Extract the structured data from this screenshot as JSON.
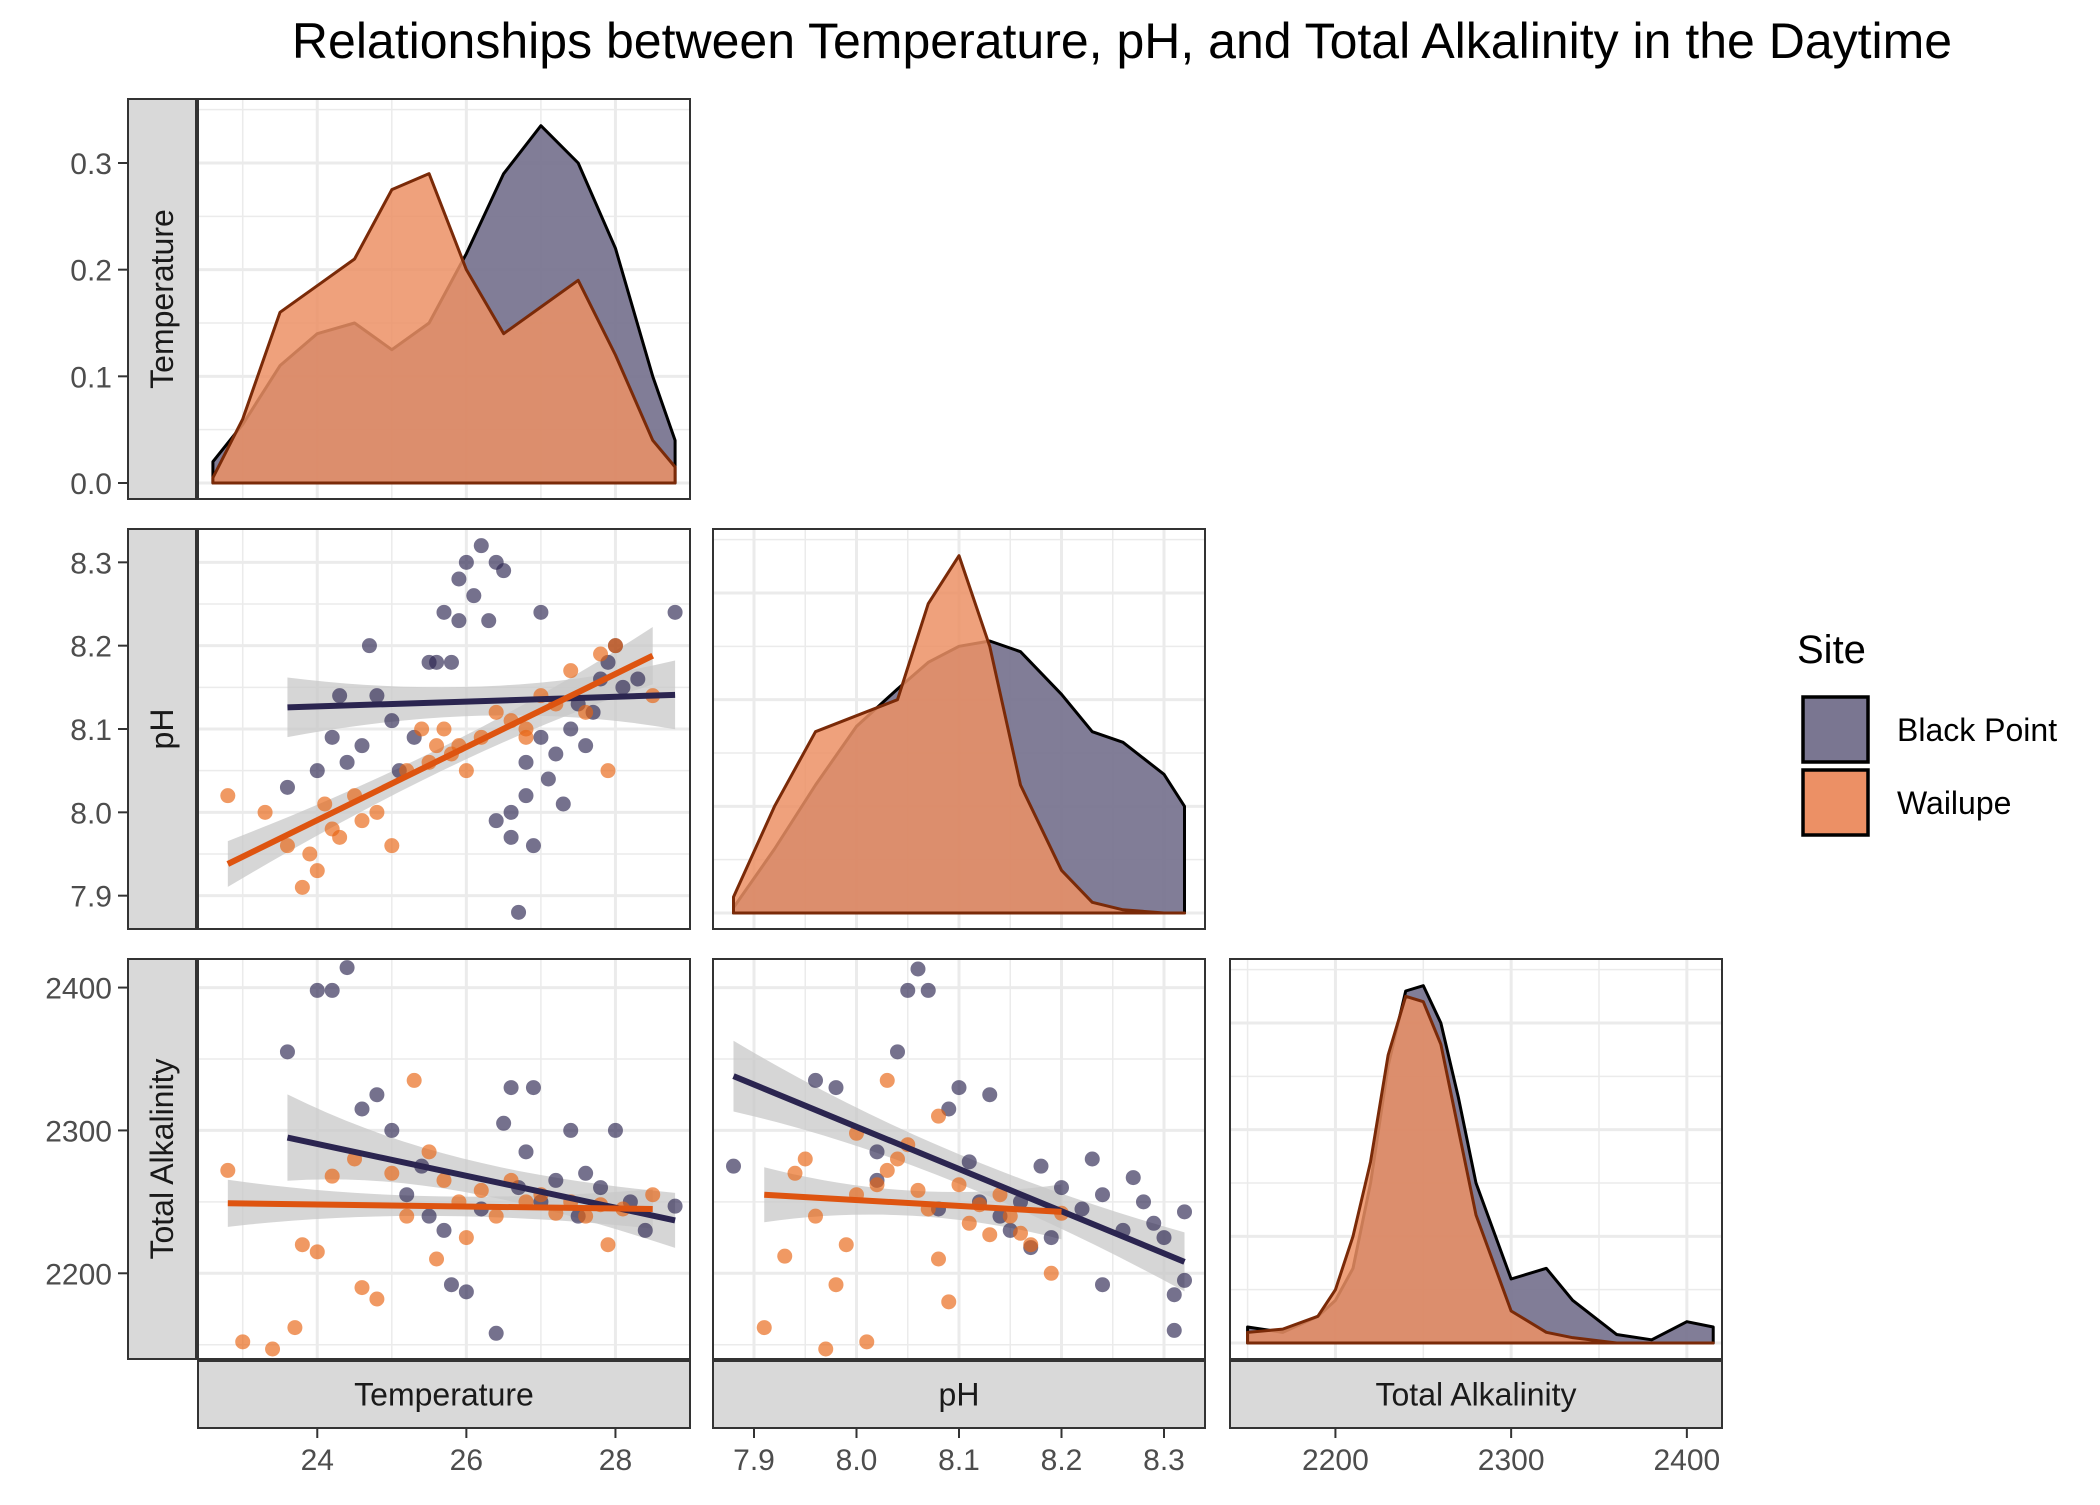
{
  "title": "Relationships between Temperature, pH, and Total Alkalinity in the Daytime",
  "legend": {
    "title": "Site",
    "position": "right",
    "items": [
      {
        "name": "Black Point",
        "color": "#7a7691"
      },
      {
        "name": "Wailupe",
        "color": "#ec9065"
      }
    ]
  },
  "colors": {
    "black_point_fill": "#7a7691",
    "wailupe_fill": "#ec9065",
    "black_point_line": "#2b2550",
    "wailupe_line": "#de5410",
    "ribbon": "#c8c8c8",
    "strip_bg": "#d9d9d9",
    "grid": "#ebebeb"
  },
  "variables": [
    "Temperature",
    "pH",
    "Total Alkalinity"
  ],
  "chart_data": {
    "type": "scatter",
    "layout": "pairs-matrix-lower-triangle",
    "grid": true,
    "variables": [
      {
        "name": "Temperature",
        "ticks": [
          24,
          26,
          28
        ],
        "range": [
          22.4,
          29.0
        ]
      },
      {
        "name": "pH",
        "ticks": [
          7.9,
          8.0,
          8.1,
          8.2,
          8.3
        ],
        "range": [
          7.86,
          8.34
        ]
      },
      {
        "name": "Total Alkalinity",
        "ticks": [
          2200,
          2300,
          2400
        ],
        "range": [
          2140,
          2420
        ]
      }
    ],
    "density_yaxis": {
      "ticks": [
        0.0,
        0.1,
        0.2,
        0.3
      ],
      "ylim": [
        -0.015,
        0.36
      ]
    },
    "density": {
      "Temperature": {
        "x": [
          22.6,
          23.0,
          23.5,
          24.0,
          24.5,
          25.0,
          25.5,
          26.0,
          26.5,
          27.0,
          27.5,
          28.0,
          28.5,
          28.8
        ],
        "Black Point": [
          0.02,
          0.055,
          0.11,
          0.14,
          0.15,
          0.125,
          0.15,
          0.215,
          0.29,
          0.335,
          0.3,
          0.22,
          0.1,
          0.04
        ],
        "Wailupe": [
          0.005,
          0.06,
          0.16,
          0.185,
          0.21,
          0.275,
          0.29,
          0.2,
          0.14,
          0.165,
          0.19,
          0.12,
          0.04,
          0.015
        ]
      },
      "pH": {
        "x": [
          7.88,
          7.92,
          7.96,
          8.0,
          8.04,
          8.07,
          8.1,
          8.13,
          8.16,
          8.2,
          8.23,
          8.26,
          8.3,
          8.32
        ],
        "Black Point": [
          0.005,
          0.06,
          0.12,
          0.175,
          0.21,
          0.235,
          0.25,
          0.255,
          0.245,
          0.205,
          0.17,
          0.16,
          0.13,
          0.1
        ],
        "Wailupe": [
          0.015,
          0.1,
          0.17,
          0.185,
          0.2,
          0.29,
          0.335,
          0.25,
          0.12,
          0.04,
          0.01,
          0.003,
          0.0,
          0.0
        ]
      },
      "Total Alkalinity": {
        "x": [
          2150,
          2170,
          2190,
          2200,
          2210,
          2220,
          2230,
          2240,
          2250,
          2260,
          2270,
          2280,
          2300,
          2320,
          2335,
          2360,
          2380,
          2400,
          2415
        ],
        "Black Point": [
          0.015,
          0.01,
          0.025,
          0.04,
          0.07,
          0.15,
          0.26,
          0.33,
          0.335,
          0.3,
          0.23,
          0.15,
          0.06,
          0.07,
          0.04,
          0.008,
          0.003,
          0.02,
          0.015
        ],
        "Wailupe": [
          0.01,
          0.013,
          0.025,
          0.05,
          0.1,
          0.17,
          0.27,
          0.325,
          0.32,
          0.28,
          0.2,
          0.12,
          0.03,
          0.01,
          0.005,
          0.0,
          0.0,
          0.0,
          0.0
        ]
      }
    },
    "scatter": {
      "pH_vs_Temperature": {
        "x_var": "Temperature",
        "y_var": "pH",
        "Black Point": [
          [
            23.6,
            8.03
          ],
          [
            24.0,
            8.05
          ],
          [
            24.2,
            8.09
          ],
          [
            24.3,
            8.14
          ],
          [
            24.4,
            8.06
          ],
          [
            24.6,
            8.08
          ],
          [
            24.7,
            8.2
          ],
          [
            24.8,
            8.14
          ],
          [
            25.0,
            8.11
          ],
          [
            25.1,
            8.05
          ],
          [
            25.3,
            8.09
          ],
          [
            25.5,
            8.18
          ],
          [
            25.6,
            8.18
          ],
          [
            25.7,
            8.24
          ],
          [
            25.8,
            8.18
          ],
          [
            25.9,
            8.28
          ],
          [
            25.9,
            8.23
          ],
          [
            26.0,
            8.3
          ],
          [
            26.1,
            8.26
          ],
          [
            26.2,
            8.32
          ],
          [
            26.3,
            8.23
          ],
          [
            26.4,
            8.3
          ],
          [
            26.5,
            8.29
          ],
          [
            26.6,
            8.0
          ],
          [
            26.6,
            7.97
          ],
          [
            26.7,
            7.88
          ],
          [
            26.8,
            8.02
          ],
          [
            26.8,
            8.06
          ],
          [
            26.9,
            7.96
          ],
          [
            27.0,
            8.24
          ],
          [
            27.0,
            8.09
          ],
          [
            27.1,
            8.04
          ],
          [
            27.2,
            8.07
          ],
          [
            27.3,
            8.01
          ],
          [
            27.4,
            8.1
          ],
          [
            27.5,
            8.13
          ],
          [
            27.6,
            8.08
          ],
          [
            27.8,
            8.16
          ],
          [
            27.9,
            8.18
          ],
          [
            28.0,
            8.2
          ],
          [
            28.1,
            8.15
          ],
          [
            28.3,
            8.16
          ],
          [
            28.8,
            8.24
          ],
          [
            27.7,
            8.12
          ],
          [
            26.4,
            7.99
          ]
        ],
        "Wailupe": [
          [
            22.8,
            8.02
          ],
          [
            23.3,
            8.0
          ],
          [
            23.6,
            7.96
          ],
          [
            23.8,
            7.91
          ],
          [
            23.9,
            7.95
          ],
          [
            24.0,
            7.93
          ],
          [
            24.1,
            8.01
          ],
          [
            24.2,
            7.98
          ],
          [
            24.5,
            8.02
          ],
          [
            24.6,
            7.99
          ],
          [
            24.8,
            8.0
          ],
          [
            25.0,
            7.96
          ],
          [
            25.2,
            8.05
          ],
          [
            25.4,
            8.1
          ],
          [
            25.5,
            8.06
          ],
          [
            25.6,
            8.08
          ],
          [
            25.7,
            8.1
          ],
          [
            25.8,
            8.07
          ],
          [
            26.0,
            8.05
          ],
          [
            26.2,
            8.09
          ],
          [
            26.4,
            8.12
          ],
          [
            26.6,
            8.11
          ],
          [
            26.8,
            8.09
          ],
          [
            27.0,
            8.14
          ],
          [
            27.2,
            8.13
          ],
          [
            27.4,
            8.17
          ],
          [
            27.6,
            8.12
          ],
          [
            27.8,
            8.19
          ],
          [
            27.9,
            8.05
          ],
          [
            28.0,
            8.2
          ],
          [
            28.5,
            8.14
          ],
          [
            25.9,
            8.08
          ],
          [
            26.8,
            8.1
          ],
          [
            24.3,
            7.97
          ]
        ]
      },
      "TA_vs_Temperature": {
        "x_var": "Temperature",
        "y_var": "Total Alkalinity",
        "Black Point": [
          [
            23.6,
            2355
          ],
          [
            24.0,
            2398
          ],
          [
            24.2,
            2398
          ],
          [
            24.4,
            2414
          ],
          [
            24.6,
            2315
          ],
          [
            24.8,
            2325
          ],
          [
            25.0,
            2300
          ],
          [
            25.2,
            2255
          ],
          [
            25.5,
            2240
          ],
          [
            25.7,
            2230
          ],
          [
            25.8,
            2192
          ],
          [
            26.0,
            2187
          ],
          [
            26.2,
            2245
          ],
          [
            26.4,
            2158
          ],
          [
            26.5,
            2305
          ],
          [
            26.6,
            2330
          ],
          [
            26.7,
            2260
          ],
          [
            26.8,
            2285
          ],
          [
            26.9,
            2330
          ],
          [
            27.0,
            2250
          ],
          [
            27.2,
            2265
          ],
          [
            27.4,
            2300
          ],
          [
            27.5,
            2240
          ],
          [
            27.6,
            2270
          ],
          [
            27.8,
            2260
          ],
          [
            28.0,
            2300
          ],
          [
            28.2,
            2250
          ],
          [
            28.4,
            2230
          ],
          [
            28.8,
            2247
          ],
          [
            25.4,
            2275
          ]
        ],
        "Wailupe": [
          [
            22.8,
            2272
          ],
          [
            23.0,
            2152
          ],
          [
            23.4,
            2147
          ],
          [
            23.7,
            2162
          ],
          [
            23.8,
            2220
          ],
          [
            24.0,
            2215
          ],
          [
            24.2,
            2268
          ],
          [
            24.5,
            2280
          ],
          [
            24.6,
            2190
          ],
          [
            24.8,
            2182
          ],
          [
            25.0,
            2270
          ],
          [
            25.2,
            2240
          ],
          [
            25.3,
            2335
          ],
          [
            25.5,
            2285
          ],
          [
            25.7,
            2265
          ],
          [
            25.9,
            2250
          ],
          [
            26.0,
            2225
          ],
          [
            26.2,
            2258
          ],
          [
            26.4,
            2240
          ],
          [
            26.6,
            2265
          ],
          [
            26.8,
            2250
          ],
          [
            27.0,
            2255
          ],
          [
            27.2,
            2242
          ],
          [
            27.4,
            2250
          ],
          [
            27.6,
            2240
          ],
          [
            27.8,
            2248
          ],
          [
            27.9,
            2220
          ],
          [
            28.1,
            2245
          ],
          [
            28.5,
            2255
          ],
          [
            25.6,
            2210
          ]
        ]
      },
      "TA_vs_pH": {
        "x_var": "pH",
        "y_var": "Total Alkalinity",
        "Black Point": [
          [
            7.88,
            2275
          ],
          [
            7.96,
            2335
          ],
          [
            7.98,
            2330
          ],
          [
            8.02,
            2265
          ],
          [
            8.04,
            2355
          ],
          [
            8.05,
            2398
          ],
          [
            8.06,
            2413
          ],
          [
            8.07,
            2398
          ],
          [
            8.08,
            2245
          ],
          [
            8.09,
            2315
          ],
          [
            8.1,
            2330
          ],
          [
            8.11,
            2278
          ],
          [
            8.12,
            2250
          ],
          [
            8.13,
            2325
          ],
          [
            8.14,
            2240
          ],
          [
            8.15,
            2230
          ],
          [
            8.16,
            2250
          ],
          [
            8.18,
            2275
          ],
          [
            8.19,
            2225
          ],
          [
            8.2,
            2260
          ],
          [
            8.22,
            2245
          ],
          [
            8.23,
            2280
          ],
          [
            8.24,
            2255
          ],
          [
            8.24,
            2192
          ],
          [
            8.26,
            2230
          ],
          [
            8.27,
            2267
          ],
          [
            8.28,
            2250
          ],
          [
            8.29,
            2235
          ],
          [
            8.3,
            2225
          ],
          [
            8.31,
            2185
          ],
          [
            8.31,
            2160
          ],
          [
            8.32,
            2195
          ],
          [
            8.32,
            2243
          ],
          [
            8.02,
            2285
          ],
          [
            8.17,
            2218
          ]
        ],
        "Wailupe": [
          [
            7.91,
            2162
          ],
          [
            7.93,
            2212
          ],
          [
            7.94,
            2270
          ],
          [
            7.95,
            2280
          ],
          [
            7.96,
            2240
          ],
          [
            7.97,
            2147
          ],
          [
            7.98,
            2192
          ],
          [
            7.99,
            2220
          ],
          [
            8.0,
            2255
          ],
          [
            8.0,
            2298
          ],
          [
            8.01,
            2152
          ],
          [
            8.02,
            2262
          ],
          [
            8.03,
            2272
          ],
          [
            8.04,
            2280
          ],
          [
            8.05,
            2290
          ],
          [
            8.06,
            2258
          ],
          [
            8.07,
            2245
          ],
          [
            8.08,
            2310
          ],
          [
            8.09,
            2180
          ],
          [
            8.1,
            2262
          ],
          [
            8.11,
            2235
          ],
          [
            8.12,
            2248
          ],
          [
            8.13,
            2227
          ],
          [
            8.14,
            2255
          ],
          [
            8.15,
            2240
          ],
          [
            8.16,
            2228
          ],
          [
            8.17,
            2220
          ],
          [
            8.19,
            2200
          ],
          [
            8.2,
            2242
          ],
          [
            8.03,
            2335
          ],
          [
            8.08,
            2210
          ]
        ]
      }
    },
    "regression": {
      "pH_vs_Temperature": {
        "Black Point": {
          "x": [
            23.6,
            28.8
          ],
          "y": [
            8.126,
            8.141
          ],
          "se": [
            0.026,
            0.03
          ]
        },
        "Wailupe": {
          "x": [
            22.8,
            28.5
          ],
          "y": [
            7.938,
            8.188
          ],
          "se": [
            0.02,
            0.025
          ]
        }
      },
      "TA_vs_Temperature": {
        "Black Point": {
          "x": [
            23.6,
            28.8
          ],
          "y": [
            2295,
            2237
          ],
          "se": [
            22,
            14
          ]
        },
        "Wailupe": {
          "x": [
            22.8,
            28.5
          ],
          "y": [
            2249,
            2245
          ],
          "se": [
            12,
            10
          ]
        }
      },
      "TA_vs_pH": {
        "Black Point": {
          "x": [
            7.88,
            8.32
          ],
          "y": [
            2338,
            2208
          ],
          "se": [
            18,
            15
          ]
        },
        "Wailupe": {
          "x": [
            7.91,
            8.2
          ],
          "y": [
            2255,
            2243
          ],
          "se": [
            14,
            14
          ]
        }
      }
    }
  }
}
